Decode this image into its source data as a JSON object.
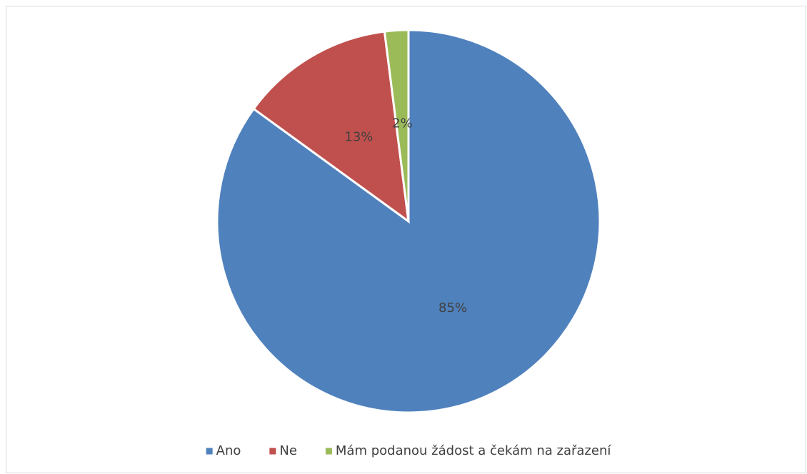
{
  "chart_data": {
    "type": "pie",
    "categories": [
      "Ano",
      "Ne",
      "Mám podanou žádost a čekám na zařazení"
    ],
    "values": [
      85,
      13,
      2
    ],
    "value_labels": [
      "85%",
      "13%",
      "2%"
    ],
    "colors": [
      "#4f81bd",
      "#c0504d",
      "#9bbb59"
    ],
    "legend": "bottom"
  }
}
